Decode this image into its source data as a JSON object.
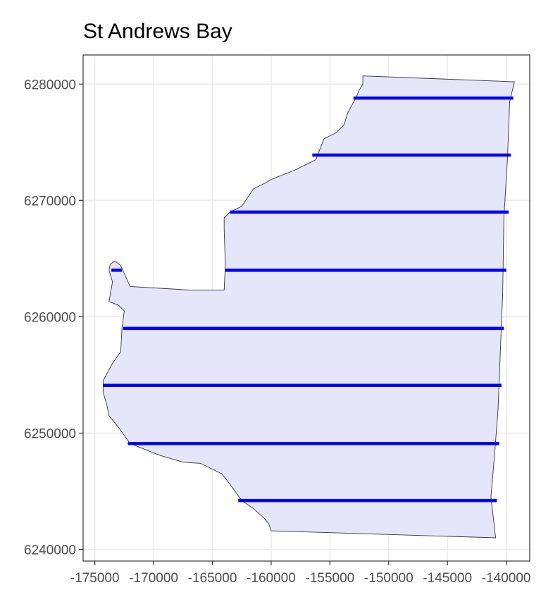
{
  "chart_data": {
    "type": "map",
    "title": "St Andrews Bay",
    "xlabel": "",
    "ylabel": "",
    "xlim": [
      -176000,
      -138000
    ],
    "ylim": [
      6239000,
      6282500
    ],
    "x_ticks": [
      -175000,
      -170000,
      -165000,
      -160000,
      -155000,
      -150000,
      -145000,
      -140000
    ],
    "x_tick_labels": [
      "-175000",
      "-170000",
      "-165000",
      "-160000",
      "-155000",
      "-150000",
      "-145000",
      "-140000"
    ],
    "y_ticks": [
      6240000,
      6250000,
      6260000,
      6270000,
      6280000
    ],
    "y_tick_labels": [
      "6240000",
      "6250000",
      "6260000",
      "6270000",
      "6280000"
    ],
    "grid": true,
    "polygon": {
      "fill": "#e5e6fa",
      "stroke": "#333333",
      "vertices": [
        [
          -152200,
          6280700
        ],
        [
          -139300,
          6280200
        ],
        [
          -139700,
          6278500
        ],
        [
          -139900,
          6273500
        ],
        [
          -140200,
          6268500
        ],
        [
          -140300,
          6262000
        ],
        [
          -140500,
          6257000
        ],
        [
          -140700,
          6252000
        ],
        [
          -141000,
          6248000
        ],
        [
          -141300,
          6244500
        ],
        [
          -140900,
          6241000
        ],
        [
          -160000,
          6241600
        ],
        [
          -160200,
          6242200
        ],
        [
          -160500,
          6242600
        ],
        [
          -161500,
          6243500
        ],
        [
          -162500,
          6244200
        ],
        [
          -163500,
          6245600
        ],
        [
          -164200,
          6246500
        ],
        [
          -166000,
          6247400
        ],
        [
          -167500,
          6247500
        ],
        [
          -169500,
          6248100
        ],
        [
          -172000,
          6249100
        ],
        [
          -172500,
          6249800
        ],
        [
          -173000,
          6250500
        ],
        [
          -173800,
          6251500
        ],
        [
          -174000,
          6252500
        ],
        [
          -174300,
          6253500
        ],
        [
          -174300,
          6254500
        ],
        [
          -173500,
          6256000
        ],
        [
          -172800,
          6257000
        ],
        [
          -172700,
          6259000
        ],
        [
          -172500,
          6260500
        ],
        [
          -173000,
          6261000
        ],
        [
          -173800,
          6261300
        ],
        [
          -173500,
          6263000
        ],
        [
          -173800,
          6264000
        ],
        [
          -173700,
          6264500
        ],
        [
          -173300,
          6264800
        ],
        [
          -172800,
          6264400
        ],
        [
          -172000,
          6262600
        ],
        [
          -167000,
          6262300
        ],
        [
          -164000,
          6262300
        ],
        [
          -163900,
          6264500
        ],
        [
          -164000,
          6267500
        ],
        [
          -164000,
          6268500
        ],
        [
          -163500,
          6269000
        ],
        [
          -162500,
          6269500
        ],
        [
          -161500,
          6271000
        ],
        [
          -160500,
          6271500
        ],
        [
          -160000,
          6271800
        ],
        [
          -158000,
          6272600
        ],
        [
          -157000,
          6273100
        ],
        [
          -156200,
          6273500
        ],
        [
          -155500,
          6275300
        ],
        [
          -154500,
          6275800
        ],
        [
          -153800,
          6276500
        ],
        [
          -153500,
          6277500
        ],
        [
          -152800,
          6278800
        ],
        [
          -152500,
          6279500
        ],
        [
          -152200,
          6280000
        ]
      ]
    },
    "series": [
      {
        "type": "transect_lines",
        "color": "#0000ff",
        "segments": [
          {
            "y": 6278800,
            "x": [
              -153000,
              -139400
            ]
          },
          {
            "y": 6273900,
            "x": [
              -156500,
              -139600
            ]
          },
          {
            "y": 6269000,
            "x": [
              -163500,
              -139800
            ]
          },
          {
            "y": 6264000,
            "x": [
              -163900,
              -140000
            ],
            "x2": [
              -173600,
              -172700
            ]
          },
          {
            "y": 6259000,
            "x": [
              -172600,
              -140200
            ]
          },
          {
            "y": 6254100,
            "x": [
              -174300,
              -140400
            ]
          },
          {
            "y": 6249100,
            "x": [
              -172200,
              -140600
            ]
          },
          {
            "y": 6244200,
            "x": [
              -162800,
              -140800
            ]
          }
        ]
      }
    ]
  }
}
